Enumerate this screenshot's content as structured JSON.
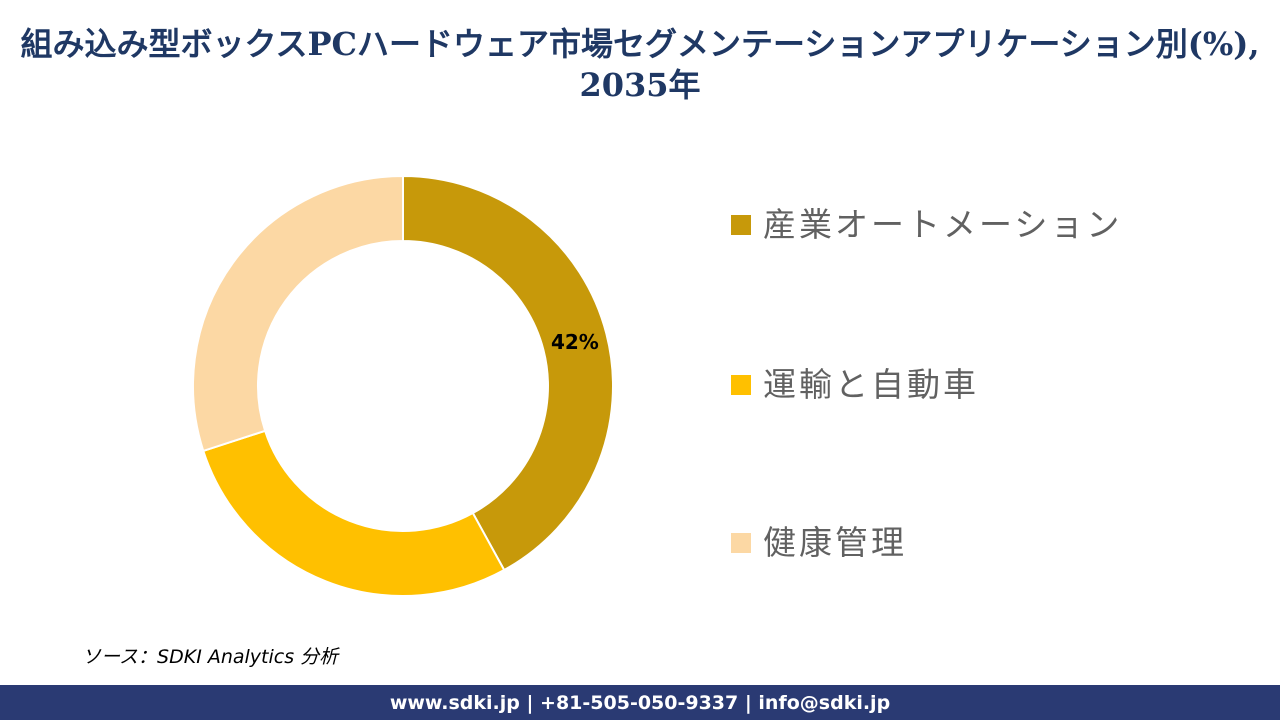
{
  "title": {
    "line1": "組み込み型ボックスPCハードウェア市場セグメンテーションアプリケーション別(%),",
    "line2": "2035年",
    "color": "#1F3864"
  },
  "chart_data": {
    "type": "pie",
    "subtype": "donut",
    "title": "組み込み型ボックスPCハードウェア市場セグメンテーションアプリケーション別(%), 2035年",
    "categories": [
      "産業オートメーション",
      "運輸と自動車",
      "健康管理"
    ],
    "values": [
      42,
      28,
      30
    ],
    "unit": "%",
    "colors": [
      "#C7990A",
      "#FFC000",
      "#FCD8A4"
    ],
    "data_labels": [
      "42%",
      "",
      ""
    ],
    "start_angle_deg": 0,
    "direction": "clockwise",
    "inner_radius_ratio": 0.69,
    "separator_color": "#FFFFFF",
    "legend_position": "right",
    "grid": false
  },
  "legend": {
    "text_color": "#616161",
    "items": [
      {
        "label": "産業オートメーション",
        "color": "#C7990A"
      },
      {
        "label": "運輸と自動車",
        "color": "#FFC000"
      },
      {
        "label": "健康管理",
        "color": "#FCD8A4"
      }
    ]
  },
  "source": {
    "text": "ソース：SDKI Analytics 分析"
  },
  "footer": {
    "text": "www.sdki.jp | +81-505-050-9337 | info@sdki.jp",
    "background": "#2A3A73",
    "text_color": "#FFFFFF"
  }
}
